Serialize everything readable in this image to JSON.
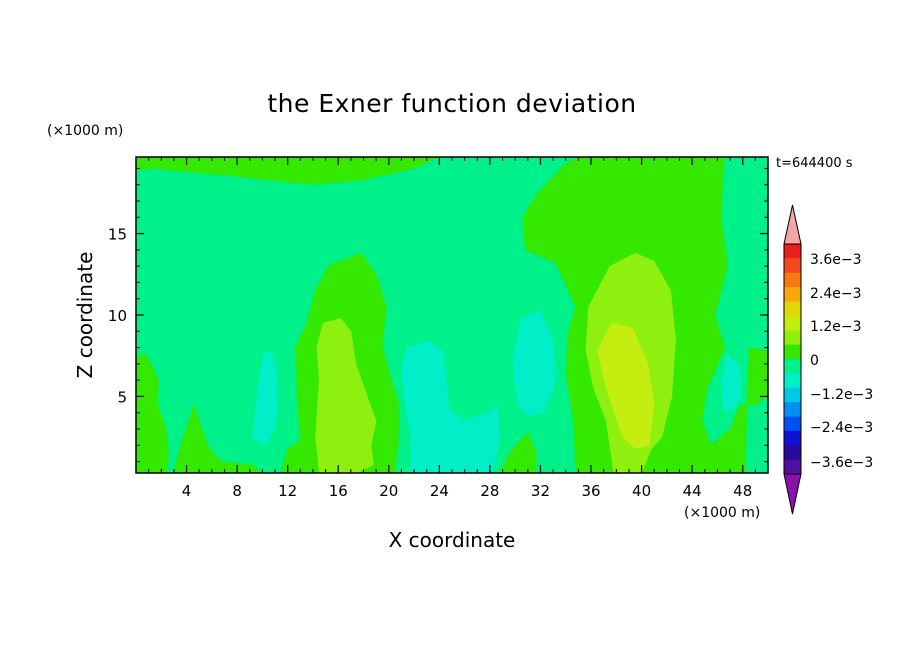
{
  "chart_data": {
    "type": "heatmap",
    "title": "the Exner function deviation",
    "xlabel": "X coordinate",
    "ylabel": "Z coordinate",
    "x_unit": "(×1000 m)",
    "y_unit": "(×1000 m)",
    "time_label": "t=644400 s",
    "xlim": [
      0,
      50
    ],
    "ylim": [
      0.3,
      19.7
    ],
    "x_ticks": [
      4,
      8,
      12,
      16,
      20,
      24,
      28,
      32,
      36,
      40,
      44,
      48
    ],
    "y_ticks": [
      5,
      10,
      15
    ],
    "colorbar": {
      "ticks": [
        "3.6e−3",
        "2.4e−3",
        "1.2e−3",
        "0",
        "−1.2e−3",
        "−2.4e−3",
        "−3.6e−3"
      ],
      "levels": [
        {
          "min": 0.0036,
          "max": 0.0042,
          "color": "#e8201e"
        },
        {
          "min": 0.003,
          "max": 0.0036,
          "color": "#f04a1c"
        },
        {
          "min": 0.0024,
          "max": 0.003,
          "color": "#f57a14"
        },
        {
          "min": 0.0018,
          "max": 0.0024,
          "color": "#f7a80e"
        },
        {
          "min": 0.0012,
          "max": 0.0018,
          "color": "#e2d60a"
        },
        {
          "min": 0.0006,
          "max": 0.0012,
          "color": "#c4ee10"
        },
        {
          "min": 0.0003,
          "max": 0.0006,
          "color": "#8ef00e"
        },
        {
          "min": 0.0,
          "max": 0.0003,
          "color": "#34e800"
        },
        {
          "min": -0.0006,
          "max": 0.0,
          "color": "#00f08a"
        },
        {
          "min": -0.0012,
          "max": -0.0006,
          "color": "#00eec8"
        },
        {
          "min": -0.0018,
          "max": -0.0012,
          "color": "#00c8e8"
        },
        {
          "min": -0.0024,
          "max": -0.0018,
          "color": "#0090f0"
        },
        {
          "min": -0.003,
          "max": -0.0024,
          "color": "#0050f0"
        },
        {
          "min": -0.0036,
          "max": -0.003,
          "color": "#1010d0"
        },
        {
          "min": -0.0042,
          "max": -0.0036,
          "color": "#2a0898"
        },
        {
          "min": -0.0048,
          "max": -0.0042,
          "color": "#5010a0"
        }
      ],
      "over_color": "#f4a6a6",
      "under_color": "#8a10b0"
    },
    "regions": [
      {
        "level": -0.0003,
        "color": "#00f08a",
        "label": "background",
        "points": [
          [
            0,
            0.3
          ],
          [
            50,
            0.3
          ],
          [
            50,
            19.7
          ],
          [
            0,
            19.7
          ]
        ]
      },
      {
        "level": 0.0002,
        "color": "#34e800",
        "label": "top-left band",
        "points": [
          [
            0,
            19.7
          ],
          [
            24,
            19.7
          ],
          [
            22,
            19.0
          ],
          [
            18,
            18.3
          ],
          [
            14,
            18.0
          ],
          [
            8,
            18.5
          ],
          [
            4,
            18.8
          ],
          [
            1.5,
            19.0
          ],
          [
            0,
            18.9
          ]
        ]
      },
      {
        "level": 0.0002,
        "color": "#34e800",
        "label": "left edge",
        "points": [
          [
            0,
            7.5
          ],
          [
            0.8,
            7.6
          ],
          [
            1.8,
            6.0
          ],
          [
            1.7,
            4.5
          ],
          [
            2.4,
            3.0
          ],
          [
            2.6,
            1.4
          ],
          [
            2.4,
            0.3
          ],
          [
            0,
            0.3
          ]
        ]
      },
      {
        "level": 0.0002,
        "color": "#34e800",
        "label": "bottom-left patch",
        "points": [
          [
            3.0,
            0.3
          ],
          [
            3.6,
            2.2
          ],
          [
            4.6,
            4.5
          ],
          [
            5.2,
            3.0
          ],
          [
            5.8,
            1.8
          ],
          [
            6.8,
            1.0
          ],
          [
            9.2,
            0.8
          ],
          [
            10.0,
            0.3
          ]
        ]
      },
      {
        "level": 0.0002,
        "color": "#34e800",
        "label": "small patch x12",
        "points": [
          [
            11.5,
            0.3
          ],
          [
            12.0,
            1.8
          ],
          [
            13.0,
            2.3
          ],
          [
            13.3,
            1.0
          ],
          [
            13.2,
            0.3
          ]
        ]
      },
      {
        "level": 0.0002,
        "color": "#34e800",
        "label": "central plume",
        "points": [
          [
            13.2,
            0.3
          ],
          [
            12.8,
            4.2
          ],
          [
            12.6,
            8.0
          ],
          [
            13.5,
            9.5
          ],
          [
            14.2,
            11.5
          ],
          [
            15.2,
            13.0
          ],
          [
            16.8,
            13.5
          ],
          [
            17.8,
            13.8
          ],
          [
            19.0,
            12.5
          ],
          [
            19.8,
            10.5
          ],
          [
            19.5,
            8.0
          ],
          [
            20.2,
            6.0
          ],
          [
            20.8,
            4.5
          ],
          [
            20.8,
            2.5
          ],
          [
            20.5,
            0.3
          ]
        ]
      },
      {
        "level": 0.0002,
        "color": "#34e800",
        "label": "small patch x31",
        "points": [
          [
            28.8,
            0.3
          ],
          [
            29.5,
            1.5
          ],
          [
            31.0,
            2.8
          ],
          [
            31.7,
            1.5
          ],
          [
            31.6,
            0.3
          ]
        ]
      },
      {
        "level": 0.0002,
        "color": "#34e800",
        "label": "right plume",
        "points": [
          [
            34.8,
            0.3
          ],
          [
            34.6,
            3.5
          ],
          [
            34.0,
            6.5
          ],
          [
            34.2,
            9.0
          ],
          [
            34.8,
            10.5
          ],
          [
            33.2,
            13.2
          ],
          [
            30.8,
            14.0
          ],
          [
            30.6,
            16.0
          ],
          [
            31.8,
            17.5
          ],
          [
            34.0,
            19.3
          ],
          [
            35.2,
            19.7
          ],
          [
            46.5,
            19.7
          ],
          [
            46.3,
            16.0
          ],
          [
            46.8,
            13.0
          ],
          [
            45.8,
            10.0
          ],
          [
            46.6,
            8.0
          ],
          [
            45.2,
            5.5
          ],
          [
            44.8,
            3.5
          ],
          [
            45.5,
            2.0
          ],
          [
            47.0,
            3.0
          ],
          [
            47.8,
            4.5
          ],
          [
            49.0,
            4.5
          ],
          [
            50,
            5.0
          ],
          [
            50,
            7.8
          ],
          [
            48.5,
            8.0
          ],
          [
            48.2,
            0.3
          ]
        ]
      },
      {
        "level": 0.0005,
        "color": "#8ef00e",
        "label": "central maximum",
        "points": [
          [
            14.5,
            0.3
          ],
          [
            14.2,
            2.5
          ],
          [
            14.5,
            6.0
          ],
          [
            14.3,
            8.0
          ],
          [
            14.8,
            9.5
          ],
          [
            16.2,
            9.8
          ],
          [
            17.0,
            9.0
          ],
          [
            17.4,
            7.0
          ],
          [
            18.3,
            5.0
          ],
          [
            19.0,
            3.5
          ],
          [
            18.6,
            2.0
          ],
          [
            18.8,
            0.8
          ],
          [
            17.5,
            0.3
          ]
        ]
      },
      {
        "level": 0.0005,
        "color": "#8ef00e",
        "label": "right maximum",
        "points": [
          [
            37.8,
            0.3
          ],
          [
            37.2,
            3.5
          ],
          [
            36.2,
            5.5
          ],
          [
            35.6,
            7.8
          ],
          [
            35.8,
            10.5
          ],
          [
            37.5,
            13.0
          ],
          [
            39.5,
            13.8
          ],
          [
            41.0,
            13.3
          ],
          [
            42.3,
            11.5
          ],
          [
            42.7,
            8.5
          ],
          [
            42.4,
            5.0
          ],
          [
            41.6,
            2.5
          ],
          [
            40.8,
            1.8
          ],
          [
            40.0,
            0.3
          ]
        ]
      },
      {
        "level": 0.0009,
        "color": "#c4ee10",
        "label": "right core",
        "points": [
          [
            38.5,
            2.5
          ],
          [
            37.2,
            5.5
          ],
          [
            36.5,
            7.8
          ],
          [
            37.6,
            9.5
          ],
          [
            39.3,
            9.2
          ],
          [
            40.5,
            7.0
          ],
          [
            41.0,
            4.5
          ],
          [
            40.6,
            2.0
          ],
          [
            39.5,
            1.8
          ]
        ]
      },
      {
        "level": -0.0008,
        "color": "#00eec8",
        "label": "cyan x10",
        "points": [
          [
            9.2,
            2.5
          ],
          [
            9.8,
            6.5
          ],
          [
            10.2,
            7.8
          ],
          [
            11.0,
            7.4
          ],
          [
            11.2,
            5.0
          ],
          [
            11.0,
            3.0
          ],
          [
            10.2,
            2.0
          ]
        ]
      },
      {
        "level": -0.0008,
        "color": "#00eec8",
        "label": "cyan x24",
        "points": [
          [
            21.7,
            0.3
          ],
          [
            21.8,
            2.5
          ],
          [
            21.3,
            4.5
          ],
          [
            21.0,
            6.5
          ],
          [
            21.4,
            8.0
          ],
          [
            23.2,
            8.4
          ],
          [
            24.3,
            7.8
          ],
          [
            24.8,
            4.2
          ],
          [
            26.0,
            3.5
          ],
          [
            27.8,
            4.0
          ],
          [
            28.6,
            4.5
          ],
          [
            28.8,
            2.5
          ],
          [
            28.6,
            1.8
          ],
          [
            28.2,
            0.3
          ]
        ]
      },
      {
        "level": -0.0008,
        "color": "#00eec8",
        "label": "cyan x32",
        "points": [
          [
            30.2,
            4.5
          ],
          [
            29.8,
            7.0
          ],
          [
            30.4,
            9.8
          ],
          [
            32.0,
            10.3
          ],
          [
            33.0,
            8.5
          ],
          [
            33.2,
            6.0
          ],
          [
            32.3,
            4.0
          ],
          [
            31.0,
            3.8
          ]
        ]
      },
      {
        "level": -0.0008,
        "color": "#00eec8",
        "label": "cyan x46",
        "points": [
          [
            46.5,
            4.0
          ],
          [
            46.3,
            6.0
          ],
          [
            46.8,
            7.6
          ],
          [
            47.8,
            6.8
          ],
          [
            47.8,
            4.8
          ],
          [
            47.3,
            4.3
          ]
        ]
      }
    ]
  }
}
